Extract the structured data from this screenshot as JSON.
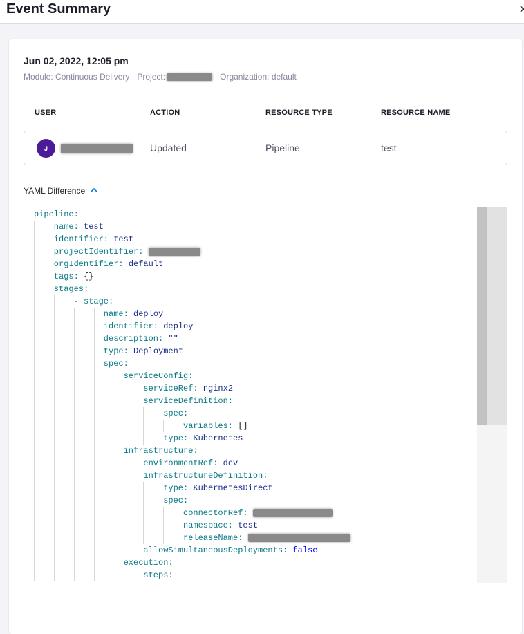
{
  "header": {
    "title": "Event Summary"
  },
  "event": {
    "timestamp": "Jun 02, 2022, 12:05 pm",
    "module": "Module: Continuous Delivery",
    "project_label": "Project:",
    "organization": "Organization: default"
  },
  "table": {
    "headers": [
      "USER",
      "ACTION",
      "RESOURCE TYPE",
      "RESOURCE NAME"
    ],
    "rows": [
      {
        "avatar": "J",
        "action": "Updated",
        "resource_type": "Pipeline",
        "resource_name": "test"
      }
    ]
  },
  "yaml_section": {
    "label": "YAML Difference"
  },
  "yaml": [
    {
      "depth": 0,
      "key": "pipeline:"
    },
    {
      "depth": 1,
      "key": "name:",
      "value": "test"
    },
    {
      "depth": 1,
      "key": "identifier:",
      "value": "test"
    },
    {
      "depth": 1,
      "key": "projectIdentifier:",
      "redacted": true
    },
    {
      "depth": 1,
      "key": "orgIdentifier:",
      "value": "default"
    },
    {
      "depth": 1,
      "key": "tags:",
      "value": "{}"
    },
    {
      "depth": 1,
      "key": "stages:"
    },
    {
      "depth": 2,
      "marker": "-",
      "key": "stage:"
    },
    {
      "depth": 3,
      "key": "name:",
      "value": "deploy"
    },
    {
      "depth": 3,
      "key": "identifier:",
      "value": "deploy"
    },
    {
      "depth": 3,
      "key": "description:",
      "value": "\"\""
    },
    {
      "depth": 3,
      "key": "type:",
      "value": "Deployment"
    },
    {
      "depth": 3,
      "key": "spec:"
    },
    {
      "depth": 4,
      "key": "serviceConfig:"
    },
    {
      "depth": 5,
      "key": "serviceRef:",
      "value": "nginx2"
    },
    {
      "depth": 5,
      "key": "serviceDefinition:"
    },
    {
      "depth": 6,
      "key": "spec:"
    },
    {
      "depth": 7,
      "key": "variables:",
      "value": "[]"
    },
    {
      "depth": 6,
      "key": "type:",
      "value": "Kubernetes"
    },
    {
      "depth": 4,
      "key": "infrastructure:"
    },
    {
      "depth": 5,
      "key": "environmentRef:",
      "value": "dev"
    },
    {
      "depth": 5,
      "key": "infrastructureDefinition:"
    },
    {
      "depth": 6,
      "key": "type:",
      "value": "KubernetesDirect"
    },
    {
      "depth": 6,
      "key": "spec:"
    },
    {
      "depth": 7,
      "key": "connectorRef:",
      "redacted": true
    },
    {
      "depth": 7,
      "key": "namespace:",
      "value": "test"
    },
    {
      "depth": 7,
      "key": "releaseName:",
      "redacted": true
    },
    {
      "depth": 5,
      "key": "allowSimultaneousDeployments:",
      "value": "false"
    },
    {
      "depth": 4,
      "key": "execution:"
    },
    {
      "depth": 5,
      "key": "steps:"
    }
  ]
}
